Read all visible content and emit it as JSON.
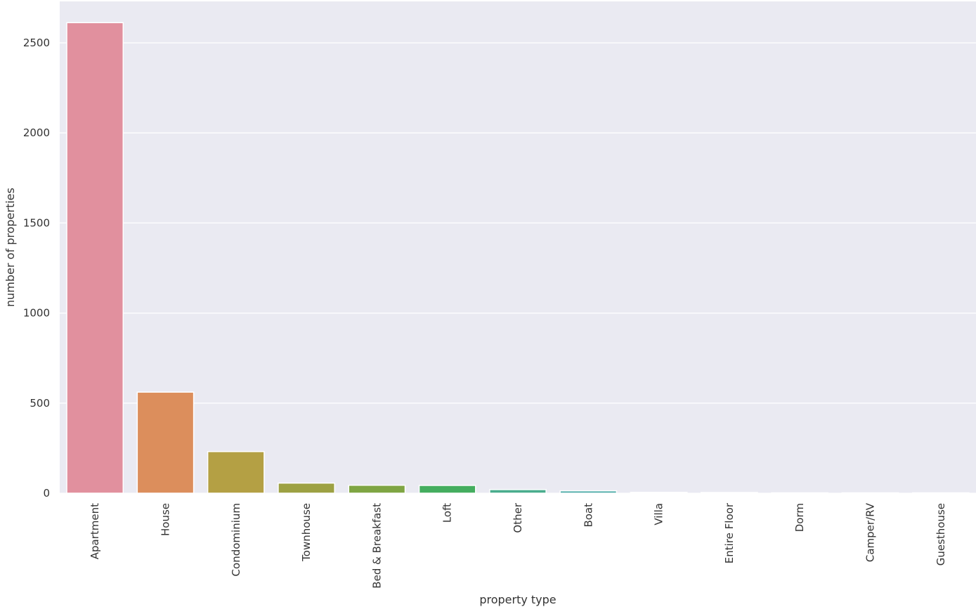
{
  "chart_data": {
    "type": "bar",
    "title": "",
    "xlabel": "property type",
    "ylabel": "number of properties",
    "categories": [
      "Apartment",
      "House",
      "Condominium",
      "Townhouse",
      "Bed & Breakfast",
      "Loft",
      "Other",
      "Boat",
      "Villa",
      "Entire Floor",
      "Dorm",
      "Camper/RV",
      "Guesthouse"
    ],
    "values": [
      2612,
      561,
      231,
      56,
      44,
      43,
      20,
      13,
      5,
      4,
      2,
      2,
      2
    ],
    "ylim": [
      0,
      2730
    ],
    "yticks": [
      0,
      500,
      1000,
      1500,
      2000,
      2500
    ],
    "ytick_labels": [
      "0",
      "500",
      "1000",
      "1500",
      "2000",
      "2500"
    ],
    "grid": true,
    "background": "#eaeaf2",
    "grid_color": "#ffffff",
    "colors": [
      "#e1909e",
      "#dc8e5c",
      "#b4a044",
      "#9da143",
      "#7fa543",
      "#44ad5f",
      "#4aad8e",
      "#4aaaa7",
      "#4aa8b6",
      "#56a7c7",
      "#8d9fd6",
      "#c28fd6",
      "#d78ac2"
    ]
  }
}
